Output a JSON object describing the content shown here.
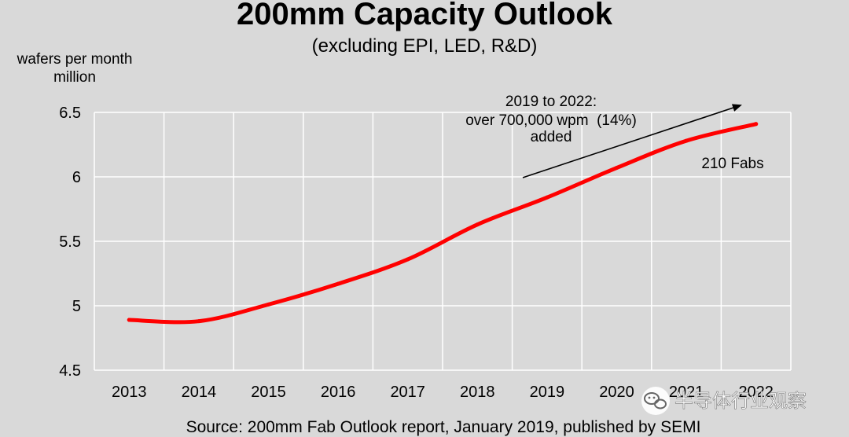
{
  "chart_data": {
    "type": "line",
    "title": "200mm Capacity Outlook",
    "subtitle": "(excluding EPI, LED, R&D)",
    "ylabel": [
      "wafers per month",
      "million"
    ],
    "xlabel": "",
    "categories": [
      "2013",
      "2014",
      "2015",
      "2016",
      "2017",
      "2018",
      "2019",
      "2020",
      "2021",
      "2022"
    ],
    "series": [
      {
        "values": [
          4.89,
          4.88,
          5.01,
          5.17,
          5.36,
          5.63,
          5.84,
          6.07,
          6.28,
          6.41
        ]
      }
    ],
    "ylim": [
      4.5,
      6.5
    ],
    "yticks": [
      "4.5",
      "5",
      "5.5",
      "6",
      "6.5"
    ],
    "grid": true,
    "annotations": [
      {
        "lines": [
          "2019 to 2022:",
          "over 700,000 wpm  (14%)",
          "added"
        ]
      },
      {
        "text": "210 Fabs"
      }
    ],
    "colors": {
      "line": "#ff0000",
      "arrow": "#000000",
      "grid": "#ffffff",
      "background": "#d9d9d9"
    }
  },
  "footer": {
    "source": "Source: 200mm Fab Outlook report, January 2019, published by SEMI"
  },
  "watermark": {
    "text": "半导体行业观察",
    "icon": "wechat-icon"
  }
}
